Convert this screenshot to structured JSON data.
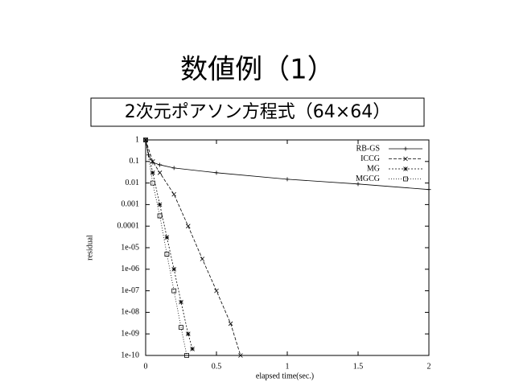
{
  "title": "数値例（1）",
  "subtitle": "2次元ポアソン方程式（64×64）",
  "chart_data": {
    "type": "line",
    "ylog": true,
    "xlabel": "elapsed time(sec.)",
    "ylabel": "residual",
    "xlim": [
      0,
      2
    ],
    "xticks": [
      0,
      0.5,
      1,
      1.5,
      2
    ],
    "ylim": [
      1e-10,
      1
    ],
    "yticks": [
      1,
      0.1,
      0.01,
      0.001,
      0.0001,
      {
        "value": 1e-05,
        "label": "1e-05"
      },
      {
        "value": 1e-06,
        "label": "1e-06"
      },
      {
        "value": 1e-07,
        "label": "1e-07"
      },
      {
        "value": 1e-08,
        "label": "1e-08"
      },
      {
        "value": 1e-09,
        "label": "1e-09"
      },
      {
        "value": 1e-10,
        "label": "1e-10"
      }
    ],
    "legend": "top-right",
    "series": [
      {
        "name": "RB-GS",
        "color": "#000000",
        "marker": "plus",
        "dash": "none",
        "x": [
          0,
          0.02,
          0.05,
          0.1,
          0.2,
          0.5,
          1.0,
          1.5,
          2.0
        ],
        "values": [
          1,
          0.2,
          0.09,
          0.07,
          0.05,
          0.03,
          0.015,
          0.009,
          0.005
        ]
      },
      {
        "name": "ICCG",
        "color": "#000000",
        "marker": "cross",
        "dash": "4 2",
        "x": [
          0,
          0.05,
          0.1,
          0.2,
          0.3,
          0.4,
          0.5,
          0.6,
          0.67
        ],
        "values": [
          1,
          0.1,
          0.03,
          0.003,
          0.0001,
          3e-06,
          1e-07,
          3e-09,
          1e-10
        ]
      },
      {
        "name": "MG",
        "color": "#000000",
        "marker": "star",
        "dash": "2 2",
        "x": [
          0,
          0.05,
          0.1,
          0.15,
          0.2,
          0.25,
          0.3,
          0.33
        ],
        "values": [
          1,
          0.03,
          0.001,
          3e-05,
          1e-06,
          3e-08,
          1e-09,
          2e-10
        ]
      },
      {
        "name": "MGCG",
        "color": "#000000",
        "marker": "square",
        "dash": "1 2",
        "x": [
          0,
          0.05,
          0.1,
          0.15,
          0.2,
          0.25,
          0.29
        ],
        "values": [
          1,
          0.01,
          0.0003,
          5e-06,
          1e-07,
          2e-09,
          1e-10
        ]
      }
    ]
  }
}
